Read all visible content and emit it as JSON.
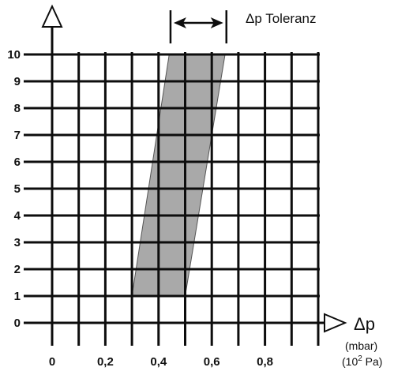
{
  "chart_data": {
    "type": "area",
    "x_ticks": [
      "0",
      "0,2",
      "0,4",
      "0,6",
      "0,8"
    ],
    "y_ticks": [
      "0",
      "1",
      "2",
      "3",
      "4",
      "5",
      "6",
      "7",
      "8",
      "9",
      "10"
    ],
    "xlim": [
      0,
      1.0
    ],
    "ylim": [
      0,
      10
    ],
    "x_minor_step": 0.1,
    "grid": true,
    "xlabel": "Δp",
    "xunit_line1": "(mbar)",
    "xunit_line2_base": "(10",
    "xunit_line2_sup": "2",
    "xunit_line2_rest": " Pa)",
    "tolerance_label": "Δp Toleranz",
    "tolerance_band": {
      "left_edge": [
        {
          "x": 0.3,
          "y": 1
        },
        {
          "x": 0.44,
          "y": 10
        }
      ],
      "right_edge": [
        {
          "x": 0.5,
          "y": 1
        },
        {
          "x": 0.65,
          "y": 10
        }
      ]
    },
    "tolerance_markers_x": [
      0.445,
      0.655
    ]
  },
  "colors": {
    "grid": "#0d0d0d",
    "band": "#a9a9a9",
    "text": "#111111"
  }
}
